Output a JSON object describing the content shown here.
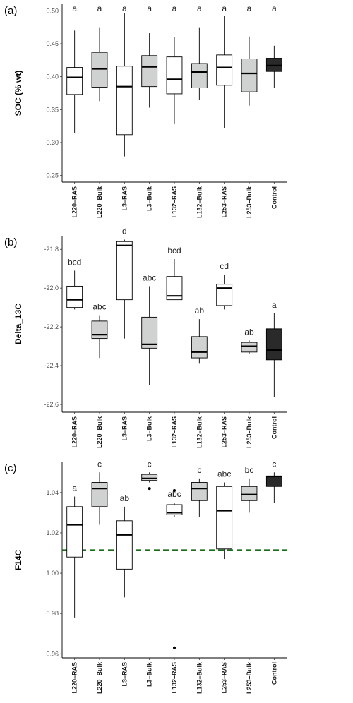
{
  "chart_data": [
    {
      "type": "boxplot",
      "panel_label": "(a)",
      "ylabel": "SOC (% wt)",
      "ylim": [
        0.24,
        0.51
      ],
      "yticks": [
        0.25,
        0.3,
        0.35,
        0.4,
        0.45,
        0.5
      ],
      "tick_decimals": 2,
      "categories": [
        "L220–RAS",
        "L220–Bulk",
        "L3–RAS",
        "L3–Bulk",
        "L132–RAS",
        "L132–Bulk",
        "L253–RAS",
        "L253–Bulk",
        "Control"
      ],
      "fill_colors": [
        "#ffffff",
        "#d0d2d1",
        "#ffffff",
        "#d0d2d1",
        "#ffffff",
        "#d0d2d1",
        "#ffffff",
        "#d0d2d1",
        "#2a2a2a"
      ],
      "boxes": [
        {
          "min": 0.315,
          "q1": 0.373,
          "median": 0.399,
          "q3": 0.414,
          "max": 0.47,
          "outliers": []
        },
        {
          "min": 0.363,
          "q1": 0.384,
          "median": 0.412,
          "q3": 0.437,
          "max": 0.475,
          "outliers": []
        },
        {
          "min": 0.279,
          "q1": 0.312,
          "median": 0.385,
          "q3": 0.416,
          "max": 0.497,
          "outliers": []
        },
        {
          "min": 0.353,
          "q1": 0.385,
          "median": 0.415,
          "q3": 0.432,
          "max": 0.466,
          "outliers": []
        },
        {
          "min": 0.329,
          "q1": 0.374,
          "median": 0.396,
          "q3": 0.43,
          "max": 0.46,
          "outliers": []
        },
        {
          "min": 0.365,
          "q1": 0.383,
          "median": 0.407,
          "q3": 0.42,
          "max": 0.475,
          "outliers": []
        },
        {
          "min": 0.322,
          "q1": 0.387,
          "median": 0.414,
          "q3": 0.433,
          "max": 0.492,
          "outliers": []
        },
        {
          "min": 0.356,
          "q1": 0.377,
          "median": 0.405,
          "q3": 0.427,
          "max": 0.461,
          "outliers": []
        },
        {
          "min": 0.383,
          "q1": 0.408,
          "median": 0.417,
          "q3": 0.428,
          "max": 0.447,
          "outliers": []
        }
      ],
      "significance": [
        "a",
        "a",
        "a",
        "a",
        "a",
        "a",
        "a",
        "a",
        "a"
      ],
      "reference_line": null
    },
    {
      "type": "boxplot",
      "panel_label": "(b)",
      "ylabel": "Delta_13C",
      "ylim": [
        -22.64,
        -21.73
      ],
      "yticks": [
        -22.6,
        -22.4,
        -22.2,
        -22.0,
        -21.8
      ],
      "tick_decimals": 1,
      "categories": [
        "L220–RAS",
        "L220–Bulk",
        "L3–RAS",
        "L3–Bulk",
        "L132–RAS",
        "L132–Bulk",
        "L253–RAS",
        "L253–Bulk",
        "Control"
      ],
      "fill_colors": [
        "#ffffff",
        "#d0d2d1",
        "#ffffff",
        "#d0d2d1",
        "#ffffff",
        "#d0d2d1",
        "#ffffff",
        "#d0d2d1",
        "#2a2a2a"
      ],
      "boxes": [
        {
          "min": -22.11,
          "q1": -22.1,
          "median": -22.06,
          "q3": -21.99,
          "max": -21.91,
          "outliers": []
        },
        {
          "min": -22.36,
          "q1": -22.26,
          "median": -22.24,
          "q3": -22.17,
          "max": -22.14,
          "outliers": []
        },
        {
          "min": -22.26,
          "q1": -22.06,
          "median": -21.78,
          "q3": -21.76,
          "max": -21.75,
          "outliers": []
        },
        {
          "min": -22.5,
          "q1": -22.31,
          "median": -22.29,
          "q3": -22.15,
          "max": -21.99,
          "outliers": []
        },
        {
          "min": -22.06,
          "q1": -22.06,
          "median": -22.04,
          "q3": -21.94,
          "max": -21.85,
          "outliers": []
        },
        {
          "min": -22.39,
          "q1": -22.36,
          "median": -22.33,
          "q3": -22.25,
          "max": -22.16,
          "outliers": []
        },
        {
          "min": -22.11,
          "q1": -22.09,
          "median": -22.0,
          "q3": -21.98,
          "max": -21.93,
          "outliers": []
        },
        {
          "min": -22.34,
          "q1": -22.33,
          "median": -22.3,
          "q3": -22.28,
          "max": -22.27,
          "outliers": []
        },
        {
          "min": -22.56,
          "q1": -22.37,
          "median": -22.32,
          "q3": -22.21,
          "max": -22.13,
          "outliers": []
        }
      ],
      "significance": [
        "bcd",
        "abc",
        "d",
        "abc",
        "bcd",
        "ab",
        "cd",
        "ab",
        "a"
      ],
      "reference_line": null
    },
    {
      "type": "boxplot",
      "panel_label": "(c)",
      "ylabel": "F14C",
      "ylim": [
        0.958,
        1.055
      ],
      "yticks": [
        0.96,
        0.98,
        1.0,
        1.02,
        1.04
      ],
      "tick_decimals": 2,
      "categories": [
        "L220–RAS",
        "L220–Bulk",
        "L3–RAS",
        "L3–Bulk",
        "L132–RAS",
        "L132–Bulk",
        "L253–RAS",
        "L253–Bulk",
        "Control"
      ],
      "fill_colors": [
        "#ffffff",
        "#d0d2d1",
        "#ffffff",
        "#d0d2d1",
        "#ffffff",
        "#d0d2d1",
        "#ffffff",
        "#d0d2d1",
        "#2a2a2a"
      ],
      "boxes": [
        {
          "min": 0.978,
          "q1": 1.008,
          "median": 1.024,
          "q3": 1.033,
          "max": 1.038,
          "outliers": []
        },
        {
          "min": 1.024,
          "q1": 1.033,
          "median": 1.042,
          "q3": 1.045,
          "max": 1.05,
          "outliers": []
        },
        {
          "min": 0.988,
          "q1": 1.002,
          "median": 1.019,
          "q3": 1.026,
          "max": 1.033,
          "outliers": []
        },
        {
          "min": 1.045,
          "q1": 1.046,
          "median": 1.047,
          "q3": 1.049,
          "max": 1.05,
          "outliers": [
            1.042
          ]
        },
        {
          "min": 1.028,
          "q1": 1.029,
          "median": 1.03,
          "q3": 1.034,
          "max": 1.035,
          "outliers": [
            1.041,
            0.963
          ]
        },
        {
          "min": 1.028,
          "q1": 1.036,
          "median": 1.042,
          "q3": 1.045,
          "max": 1.047,
          "outliers": []
        },
        {
          "min": 1.007,
          "q1": 1.012,
          "median": 1.031,
          "q3": 1.043,
          "max": 1.045,
          "outliers": []
        },
        {
          "min": 1.03,
          "q1": 1.036,
          "median": 1.039,
          "q3": 1.043,
          "max": 1.047,
          "outliers": []
        },
        {
          "min": 1.035,
          "q1": 1.043,
          "median": 1.048,
          "q3": 1.048,
          "max": 1.05,
          "outliers": []
        }
      ],
      "significance": [
        "a",
        "c",
        "ab",
        "c",
        "abc",
        "c",
        "abc",
        "bc",
        "c"
      ],
      "reference_line": {
        "y": 1.0115,
        "color": "#1a6b1a",
        "style": "dashed"
      }
    }
  ]
}
